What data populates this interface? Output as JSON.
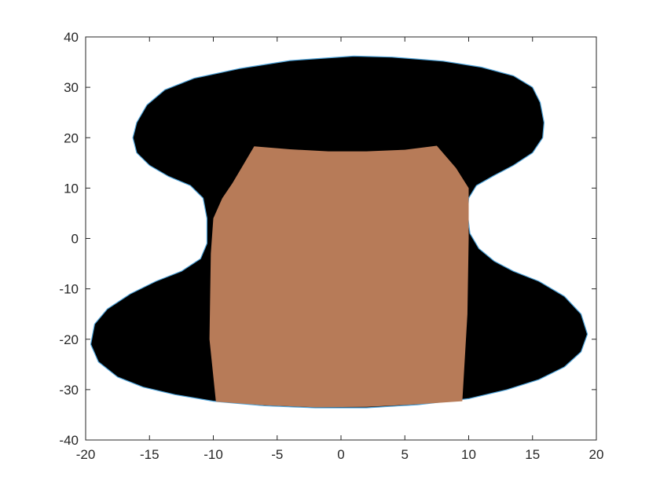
{
  "chart_data": {
    "type": "area",
    "title": "",
    "xlabel": "",
    "ylabel": "",
    "xlim": [
      -20,
      20
    ],
    "ylim": [
      -40,
      40
    ],
    "x_ticks": [
      "-20",
      "-15",
      "-10",
      "-5",
      "0",
      "5",
      "10",
      "15",
      "20"
    ],
    "y_ticks": [
      "40",
      "30",
      "20",
      "10",
      "0",
      "-10",
      "-20",
      "-30",
      "-40"
    ],
    "grid": false,
    "legend": "none",
    "colors": {
      "outer_fill": "#000000",
      "outer_outline": "#4fa3d9",
      "inner_fill": "#b77b58",
      "axes": "#262626",
      "background": "#ffffff"
    },
    "series": [
      {
        "type": "polygon",
        "points": [
          [
            1.0,
            36.2
          ],
          [
            4.0,
            36.0
          ],
          [
            8.0,
            35.2
          ],
          [
            11.0,
            34.0
          ],
          [
            13.5,
            32.3
          ],
          [
            15.0,
            30.0
          ],
          [
            15.6,
            27.0
          ],
          [
            15.9,
            23.0
          ],
          [
            15.8,
            20.0
          ],
          [
            15.0,
            17.0
          ],
          [
            13.5,
            14.5
          ],
          [
            12.0,
            12.5
          ],
          [
            10.6,
            10.5
          ],
          [
            10.0,
            8.0
          ],
          [
            9.9,
            5.0
          ],
          [
            10.1,
            1.0
          ],
          [
            10.8,
            -2.0
          ],
          [
            12.0,
            -4.5
          ],
          [
            13.5,
            -6.5
          ],
          [
            15.5,
            -8.5
          ],
          [
            17.5,
            -11.5
          ],
          [
            18.8,
            -15.0
          ],
          [
            19.3,
            -19.0
          ],
          [
            18.8,
            -22.5
          ],
          [
            17.5,
            -25.5
          ],
          [
            15.5,
            -28.0
          ],
          [
            13.0,
            -30.0
          ],
          [
            10.0,
            -31.8
          ],
          [
            6.0,
            -33.0
          ],
          [
            2.0,
            -33.6
          ],
          [
            -2.0,
            -33.6
          ],
          [
            -6.0,
            -33.2
          ],
          [
            -10.0,
            -32.3
          ],
          [
            -13.0,
            -31.0
          ],
          [
            -15.5,
            -29.5
          ],
          [
            -17.5,
            -27.5
          ],
          [
            -19.0,
            -24.5
          ],
          [
            -19.6,
            -21.0
          ],
          [
            -19.3,
            -17.0
          ],
          [
            -18.3,
            -14.0
          ],
          [
            -16.5,
            -11.0
          ],
          [
            -14.5,
            -8.5
          ],
          [
            -12.5,
            -6.5
          ],
          [
            -11.0,
            -4.0
          ],
          [
            -10.5,
            -1.0
          ],
          [
            -10.5,
            4.0
          ],
          [
            -10.8,
            8.0
          ],
          [
            -11.8,
            10.5
          ],
          [
            -13.5,
            12.3
          ],
          [
            -15.0,
            14.5
          ],
          [
            -16.0,
            17.0
          ],
          [
            -16.3,
            20.0
          ],
          [
            -16.0,
            23.0
          ],
          [
            -15.2,
            26.5
          ],
          [
            -13.8,
            29.5
          ],
          [
            -11.5,
            31.8
          ],
          [
            -8.0,
            33.7
          ],
          [
            -4.0,
            35.3
          ]
        ]
      },
      {
        "type": "polygon",
        "points": [
          [
            -6.8,
            18.3
          ],
          [
            -4.0,
            17.7
          ],
          [
            -1.0,
            17.3
          ],
          [
            2.0,
            17.3
          ],
          [
            5.0,
            17.6
          ],
          [
            7.5,
            18.4
          ],
          [
            9.0,
            14.0
          ],
          [
            10.0,
            10.0
          ],
          [
            10.0,
            0.0
          ],
          [
            9.9,
            -15.0
          ],
          [
            9.5,
            -32.3
          ],
          [
            6.0,
            -32.9
          ],
          [
            2.0,
            -33.4
          ],
          [
            -2.0,
            -33.5
          ],
          [
            -6.0,
            -33.1
          ],
          [
            -9.8,
            -32.4
          ],
          [
            -10.3,
            -20.0
          ],
          [
            -10.2,
            -3.0
          ],
          [
            -10.0,
            4.0
          ],
          [
            -9.3,
            8.0
          ],
          [
            -8.5,
            11.0
          ],
          [
            -7.8,
            14.0
          ]
        ]
      }
    ]
  }
}
